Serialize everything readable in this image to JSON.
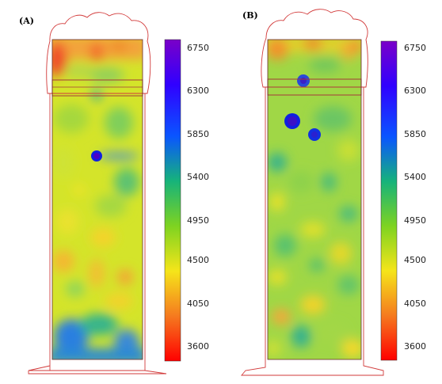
{
  "panels": [
    {
      "label": "(A)"
    },
    {
      "label": "(B)"
    }
  ],
  "colorbar": {
    "ticks": [
      "6750",
      "6300",
      "5850",
      "5400",
      "4950",
      "4500",
      "4050",
      "3600"
    ],
    "stops": [
      "#7a00c8",
      "#1a00ff",
      "#0a55ff",
      "#16b37a",
      "#7ed321",
      "#f5e51a",
      "#f57a1f",
      "#ff0000"
    ]
  }
}
